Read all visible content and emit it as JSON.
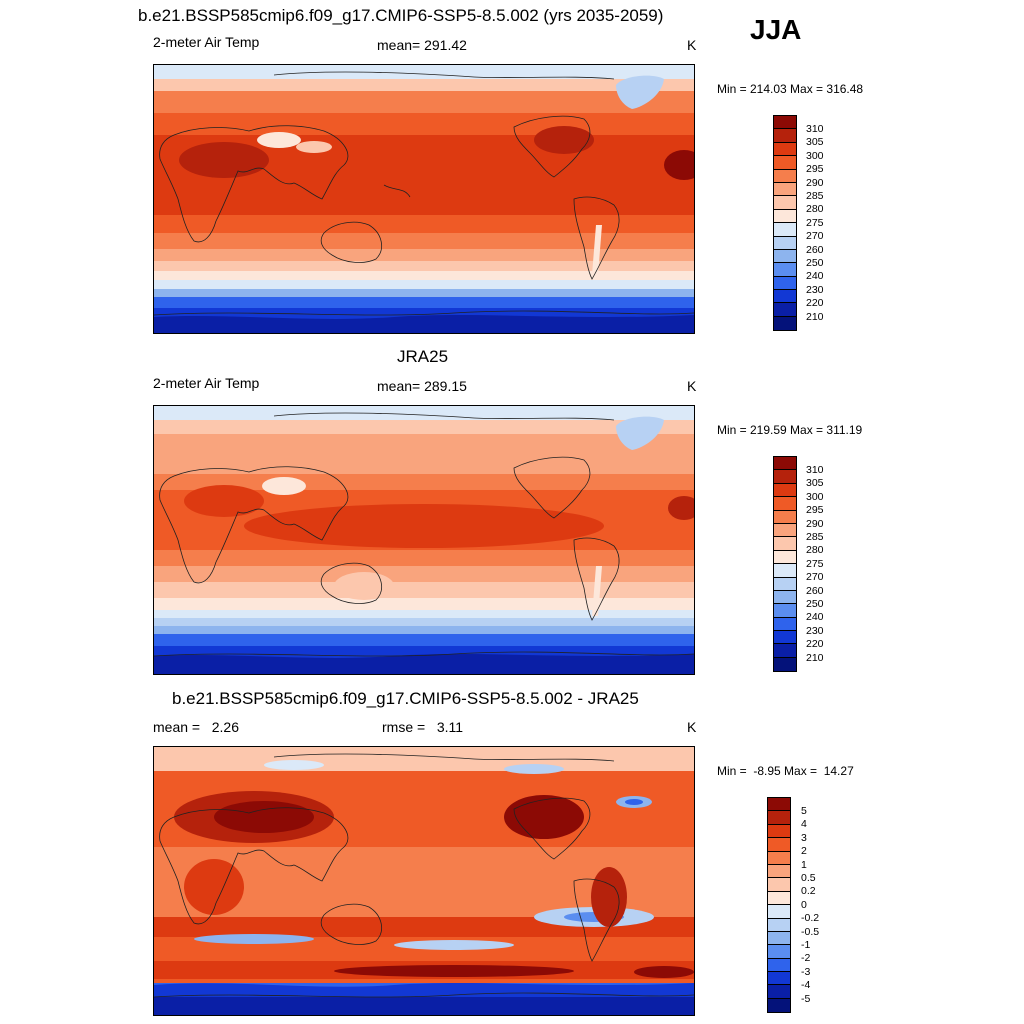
{
  "season": "JJA",
  "panels": [
    {
      "title": "b.e21.BSSP585cmip6.f09_g17.CMIP6-SSP5-8.5.002 (yrs 2035-2059)",
      "left_label": "2-meter Air Temp",
      "center_label": "mean= 291.42",
      "units": "K",
      "minmax": "Min = 214.03 Max = 316.48",
      "colorbar_labels": [
        "310",
        "305",
        "300",
        "295",
        "290",
        "285",
        "280",
        "275",
        "270",
        "260",
        "250",
        "240",
        "230",
        "220",
        "210"
      ]
    },
    {
      "title": "JRA25",
      "left_label": "2-meter Air Temp",
      "center_label": "mean= 289.15",
      "units": "K",
      "minmax": "Min = 219.59 Max = 311.19",
      "colorbar_labels": [
        "310",
        "305",
        "300",
        "295",
        "290",
        "285",
        "280",
        "275",
        "270",
        "260",
        "250",
        "240",
        "230",
        "220",
        "210"
      ]
    },
    {
      "title": "b.e21.BSSP585cmip6.f09_g17.CMIP6-SSP5-8.5.002 - JRA25",
      "left_label": "mean =   2.26",
      "center_label": "rmse =   3.11",
      "units": "K",
      "minmax": "Min =  -8.95 Max =  14.27",
      "colorbar_labels": [
        "5",
        "4",
        "3",
        "2",
        "1",
        "0.5",
        "0.2",
        "0",
        "-0.2",
        "-0.5",
        "-1",
        "-2",
        "-3",
        "-4",
        "-5"
      ]
    }
  ],
  "colors": {
    "temp_scale": [
      "#8c0a05",
      "#b5220c",
      "#dd3a11",
      "#ef5a26",
      "#f57e4c",
      "#f9a47d",
      "#fcc7ad",
      "#fde7da",
      "#dbe9f8",
      "#b7d1f3",
      "#8db4ee",
      "#5b8ef0",
      "#2f63ec",
      "#1238d4",
      "#0a1fa6",
      "#04127a"
    ],
    "diff_scale": [
      "#8c0a05",
      "#b5220c",
      "#dd3a11",
      "#ef5a26",
      "#f57e4c",
      "#f9a47d",
      "#fcc7ad",
      "#fde7da",
      "#dbe9f8",
      "#b7d1f3",
      "#8db4ee",
      "#5b8ef0",
      "#2f63ec",
      "#1238d4",
      "#0a1fa6",
      "#04127a"
    ]
  }
}
